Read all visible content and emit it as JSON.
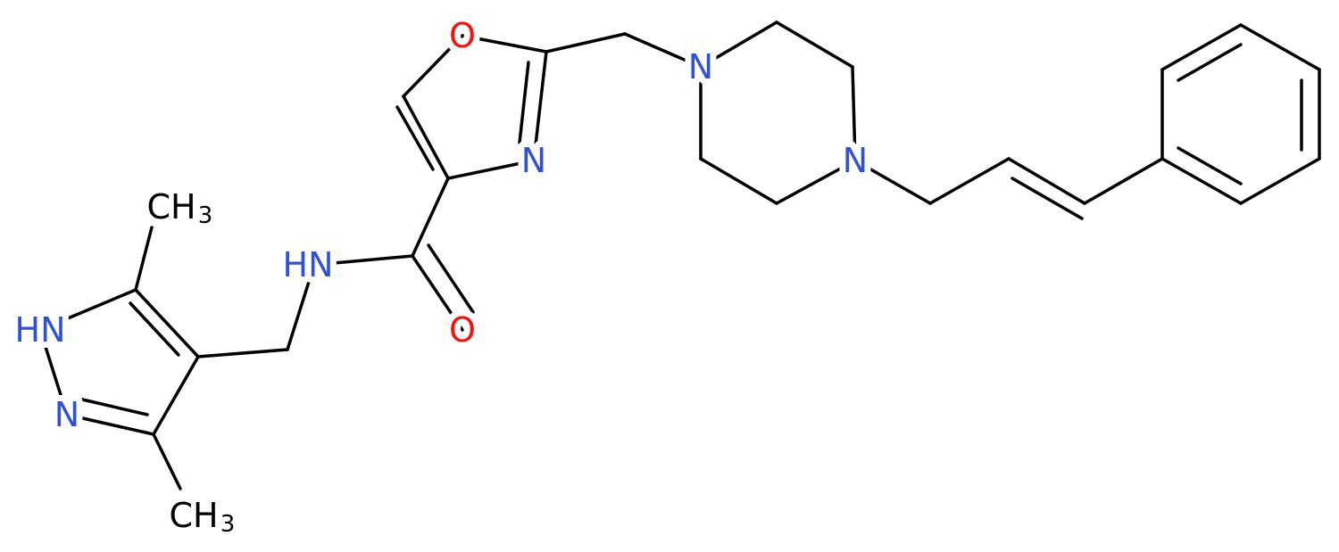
{
  "atoms": [
    {
      "label": "O"
    },
    {
      "label": "N"
    },
    {
      "label": "N"
    },
    {
      "label": "N"
    },
    {
      "label": "HN"
    },
    {
      "label": "O"
    },
    {
      "label": "CH",
      "sub": "3"
    },
    {
      "label": "HN"
    },
    {
      "label": "N"
    },
    {
      "label": "CH",
      "sub": "3"
    }
  ]
}
